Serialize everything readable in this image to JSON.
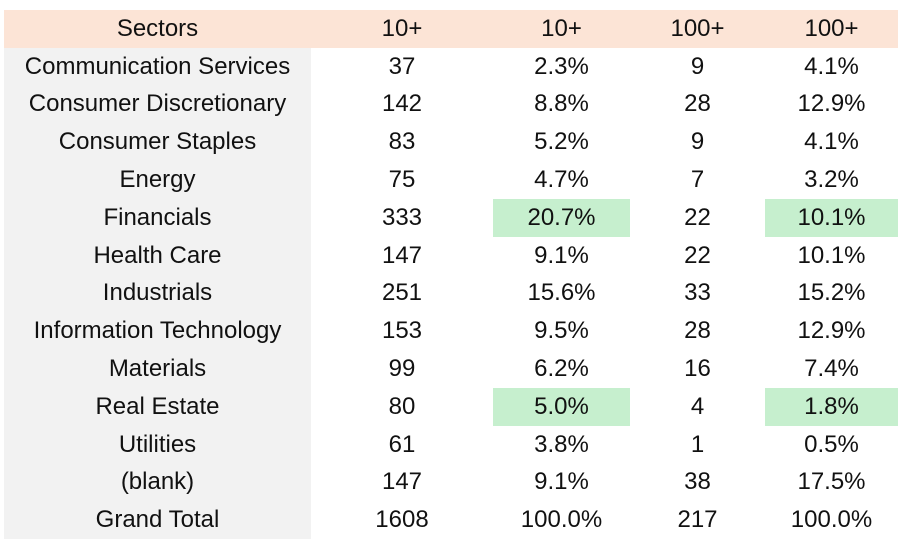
{
  "table": {
    "header": [
      "Sectors",
      "10+",
      "10+",
      "100+",
      "100+"
    ],
    "rows": [
      [
        "Communication Services",
        "37",
        "2.3%",
        "9",
        "4.1%"
      ],
      [
        "Consumer Discretionary",
        "142",
        "8.8%",
        "28",
        "12.9%"
      ],
      [
        "Consumer Staples",
        "83",
        "5.2%",
        "9",
        "4.1%"
      ],
      [
        "Energy",
        "75",
        "4.7%",
        "7",
        "3.2%"
      ],
      [
        "Financials",
        "333",
        "20.7%",
        "22",
        "10.1%"
      ],
      [
        "Health Care",
        "147",
        "9.1%",
        "22",
        "10.1%"
      ],
      [
        "Industrials",
        "251",
        "15.6%",
        "33",
        "15.2%"
      ],
      [
        "Information Technology",
        "153",
        "9.5%",
        "28",
        "12.9%"
      ],
      [
        "Materials",
        "99",
        "6.2%",
        "16",
        "7.4%"
      ],
      [
        "Real Estate",
        "80",
        "5.0%",
        "4",
        "1.8%"
      ],
      [
        "Utilities",
        "61",
        "3.8%",
        "1",
        "0.5%"
      ],
      [
        "(blank)",
        "147",
        "9.1%",
        "38",
        "17.5%"
      ],
      [
        "Grand Total",
        "1608",
        "100.0%",
        "217",
        "100.0%"
      ]
    ]
  }
}
